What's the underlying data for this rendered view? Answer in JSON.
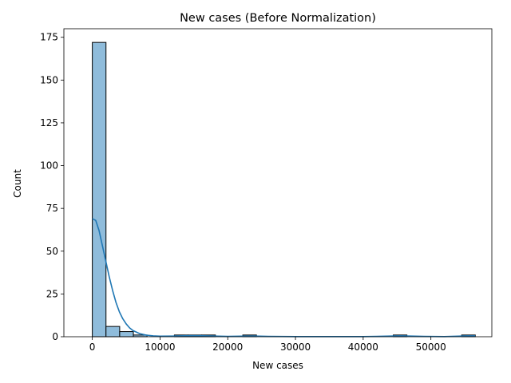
{
  "chart_data": {
    "type": "histogram",
    "title": "New cases (Before Normalization)",
    "xlabel": "New cases",
    "ylabel": "Count",
    "xlim": [
      -4200,
      59000
    ],
    "ylim": [
      0,
      180
    ],
    "xticks": [
      0,
      10000,
      20000,
      30000,
      40000,
      50000
    ],
    "yticks": [
      0,
      25,
      50,
      75,
      100,
      125,
      150,
      175
    ],
    "bin_width": 2020,
    "bins": [
      {
        "x0": 0,
        "x1": 2020,
        "count": 172
      },
      {
        "x0": 2020,
        "x1": 4040,
        "count": 6
      },
      {
        "x0": 4040,
        "x1": 6060,
        "count": 3
      },
      {
        "x0": 6060,
        "x1": 8080,
        "count": 1
      },
      {
        "x0": 8080,
        "x1": 10100,
        "count": 0
      },
      {
        "x0": 10100,
        "x1": 12120,
        "count": 0
      },
      {
        "x0": 12120,
        "x1": 14140,
        "count": 1
      },
      {
        "x0": 14140,
        "x1": 16160,
        "count": 1
      },
      {
        "x0": 16160,
        "x1": 18180,
        "count": 1
      },
      {
        "x0": 18180,
        "x1": 20200,
        "count": 0
      },
      {
        "x0": 20200,
        "x1": 22220,
        "count": 0
      },
      {
        "x0": 22220,
        "x1": 24240,
        "count": 1
      },
      {
        "x0": 24240,
        "x1": 26260,
        "count": 0
      },
      {
        "x0": 26260,
        "x1": 28280,
        "count": 0
      },
      {
        "x0": 28280,
        "x1": 30300,
        "count": 0
      },
      {
        "x0": 30300,
        "x1": 32320,
        "count": 0
      },
      {
        "x0": 32320,
        "x1": 34340,
        "count": 0
      },
      {
        "x0": 34340,
        "x1": 36360,
        "count": 0
      },
      {
        "x0": 36360,
        "x1": 38380,
        "count": 0
      },
      {
        "x0": 38380,
        "x1": 40400,
        "count": 0
      },
      {
        "x0": 40400,
        "x1": 42420,
        "count": 0
      },
      {
        "x0": 42420,
        "x1": 44440,
        "count": 0
      },
      {
        "x0": 44440,
        "x1": 46460,
        "count": 1
      },
      {
        "x0": 46460,
        "x1": 48480,
        "count": 0
      },
      {
        "x0": 48480,
        "x1": 50500,
        "count": 0
      },
      {
        "x0": 50500,
        "x1": 52520,
        "count": 0
      },
      {
        "x0": 52520,
        "x1": 54540,
        "count": 0
      },
      {
        "x0": 54540,
        "x1": 56560,
        "count": 1
      }
    ],
    "kde": {
      "x": [
        0,
        500,
        1000,
        1500,
        2000,
        2500,
        3000,
        3500,
        4000,
        4500,
        5000,
        5500,
        6000,
        7000,
        8000,
        9000,
        10000,
        12000,
        14000,
        16000,
        18000,
        20000,
        22000,
        24000,
        26000,
        30000,
        35000,
        40000,
        42000,
        44000,
        45500,
        47000,
        49000,
        52000,
        54000,
        55500,
        56560
      ],
      "y": [
        69,
        68,
        62,
        53,
        44,
        35,
        27,
        20,
        14.5,
        10.5,
        7.5,
        5.2,
        3.6,
        1.8,
        0.9,
        0.5,
        0.3,
        0.4,
        0.6,
        0.6,
        0.4,
        0.2,
        0.3,
        0.4,
        0.2,
        0.1,
        0.1,
        0.1,
        0.2,
        0.4,
        0.5,
        0.4,
        0.2,
        0.1,
        0.3,
        0.5,
        0.5
      ]
    },
    "bar_color": "#8fbcdb",
    "bar_edge_color": "#000000",
    "kde_color": "#1f77b4",
    "grid": false,
    "legend": "none"
  }
}
